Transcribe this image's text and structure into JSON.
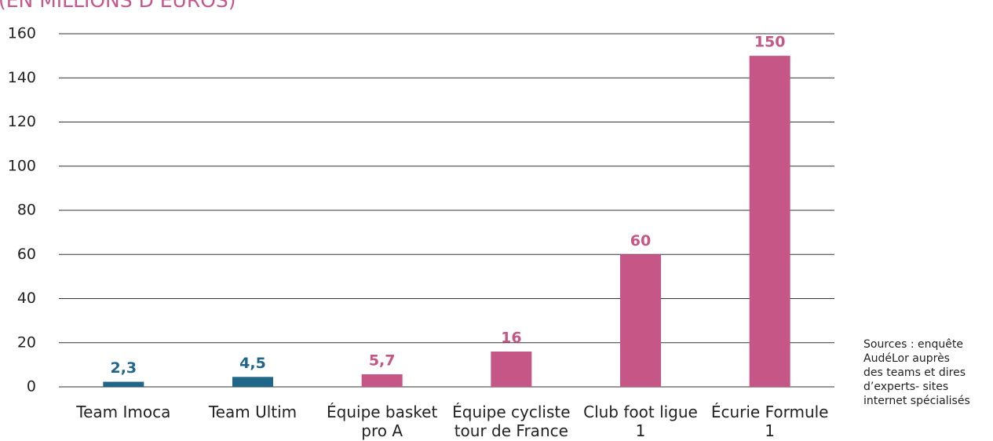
{
  "chart_data": {
    "type": "bar",
    "title": "(EN MILLIONS D’EUROS)",
    "categories": [
      "Team Imoca",
      "Team Ultim",
      "Équipe basket pro A",
      "Équipe cycliste tour de France",
      "Club foot ligue 1",
      "Écurie Formule 1"
    ],
    "values": [
      2.3,
      4.5,
      5.7,
      16,
      60,
      150
    ],
    "value_labels": [
      "2,3",
      "4,5",
      "5,7",
      "16",
      "60",
      "150"
    ],
    "colors": [
      "#1f6688",
      "#1f6688",
      "#c55686",
      "#c55686",
      "#c55686",
      "#c55686"
    ],
    "ylim": [
      0,
      160
    ],
    "yticks": [
      0,
      20,
      40,
      60,
      80,
      100,
      120,
      140,
      160
    ],
    "grid": true,
    "annotations": [
      "Sources : enquête",
      "AudéLor auprès",
      "des teams et dires",
      "d’experts- sites",
      "internet spécialisés"
    ]
  }
}
